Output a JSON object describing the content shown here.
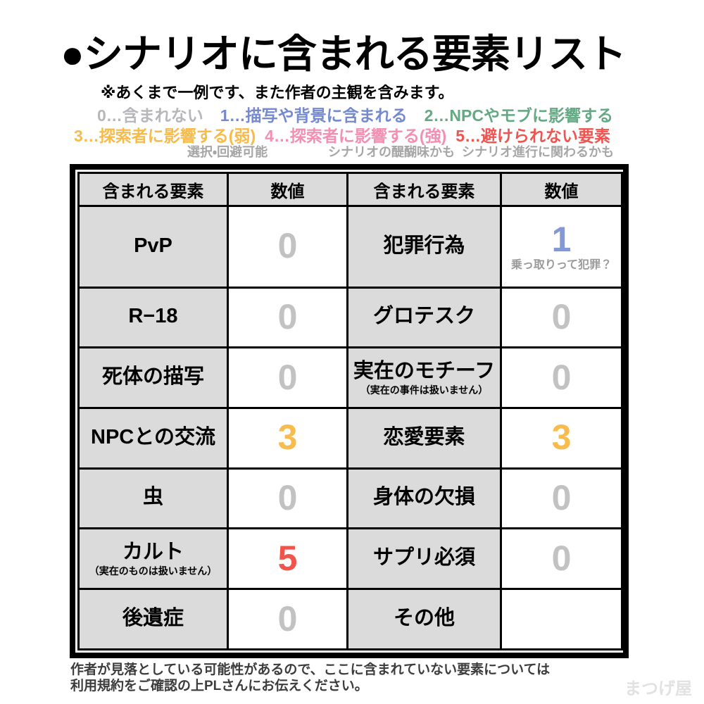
{
  "page": {
    "title": "●シナリオに含まれる要素リスト",
    "subtitle": "※あくまで一例です、また作者の主観を含みます。",
    "watermark": "まつげ屋"
  },
  "legend": {
    "levels": [
      {
        "label": "0…含まれない",
        "color": "#b6b6bb"
      },
      {
        "label": "1…描写や背景に含まれる",
        "color": "#7489ce"
      },
      {
        "label": "2…NPCやモブに影響する",
        "color": "#64a983"
      },
      {
        "label": "3…探索者に影響する(弱)",
        "color": "#f7bb4a"
      },
      {
        "label": "4…探索者に影響する(強)",
        "color": "#f48fb1"
      },
      {
        "label": "5…避けられない要素",
        "color": "#ee5450"
      }
    ],
    "sublabels": [
      "選択・回避可能",
      "シナリオの醍醐味かも",
      "シナリオ進行に関わるかも"
    ]
  },
  "table": {
    "headers": [
      "含まれる要素",
      "数値",
      "含まれる要素",
      "数値"
    ],
    "rows": [
      {
        "l_label": "PvP",
        "l_value": "0",
        "l_value_color": "#c2c2c2",
        "r_label": "犯罪行為",
        "r_value": "1",
        "r_value_color": "#8598d6",
        "r_value_note": "乗っ取りって犯罪？"
      },
      {
        "l_label": "R−18",
        "l_value": "0",
        "l_value_color": "#c2c2c2",
        "r_label": "グロテスク",
        "r_value": "0",
        "r_value_color": "#c2c2c2"
      },
      {
        "l_label": "死体の描写",
        "l_value": "0",
        "l_value_color": "#c2c2c2",
        "r_label": "実在のモチーフ",
        "r_note": "（実在の事件は扱いません）",
        "r_value": "0",
        "r_value_color": "#c2c2c2"
      },
      {
        "l_label": "NPCとの交流",
        "l_value": "3",
        "l_value_color": "#f8bc4c",
        "r_label": "恋愛要素",
        "r_value": "3",
        "r_value_color": "#f8bc4c"
      },
      {
        "l_label": "虫",
        "l_value": "0",
        "l_value_color": "#c2c2c2",
        "r_label": "身体の欠損",
        "r_value": "0",
        "r_value_color": "#c2c2c2"
      },
      {
        "l_label": "カルト",
        "l_note": "（実在のものは扱いません）",
        "l_value": "5",
        "l_value_color": "#f0544b",
        "r_label": "サプリ必須",
        "r_value": "0",
        "r_value_color": "#c2c2c2"
      },
      {
        "l_label": "後遺症",
        "l_value": "0",
        "l_value_color": "#c2c2c2",
        "r_label": "その他",
        "r_value": "",
        "r_value_color": ""
      }
    ]
  },
  "footer": {
    "line1": "作者が見落としている可能性があるので、ここに含まれていない要素については",
    "line2": "利用規約をご確認の上PLさんにお伝えください。"
  }
}
